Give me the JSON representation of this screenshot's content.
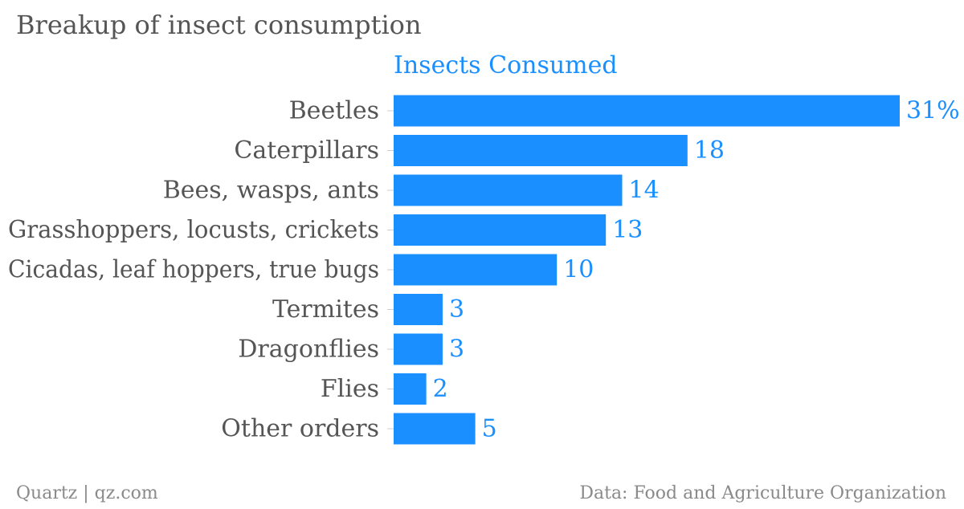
{
  "chart_data": {
    "type": "bar",
    "orientation": "horizontal",
    "title": "Breakup of insect consumption",
    "series": [
      {
        "name": "Insects Consumed",
        "values": [
          31,
          18,
          14,
          13,
          10,
          3,
          3,
          2,
          5
        ]
      }
    ],
    "categories": [
      "Beetles",
      "Caterpillars",
      "Bees, wasps, ants",
      "Grasshoppers, locusts, crickets",
      "Cicadas, leaf hoppers, true bugs",
      "Termites",
      "Dragonflies",
      "Flies",
      "Other orders"
    ],
    "value_labels": [
      "31%",
      "18",
      "14",
      "13",
      "10",
      "3",
      "3",
      "2",
      "5"
    ],
    "xlim": [
      0,
      31
    ],
    "grid": false,
    "legend": "top",
    "colors": {
      "bar": "#1a8fff",
      "label_text": "#555555",
      "value_text": "#1a8fff",
      "tick": "#cccccc"
    }
  },
  "footer": {
    "source_left": "Quartz | qz.com",
    "source_right": "Data: Food and Agriculture Organization"
  }
}
